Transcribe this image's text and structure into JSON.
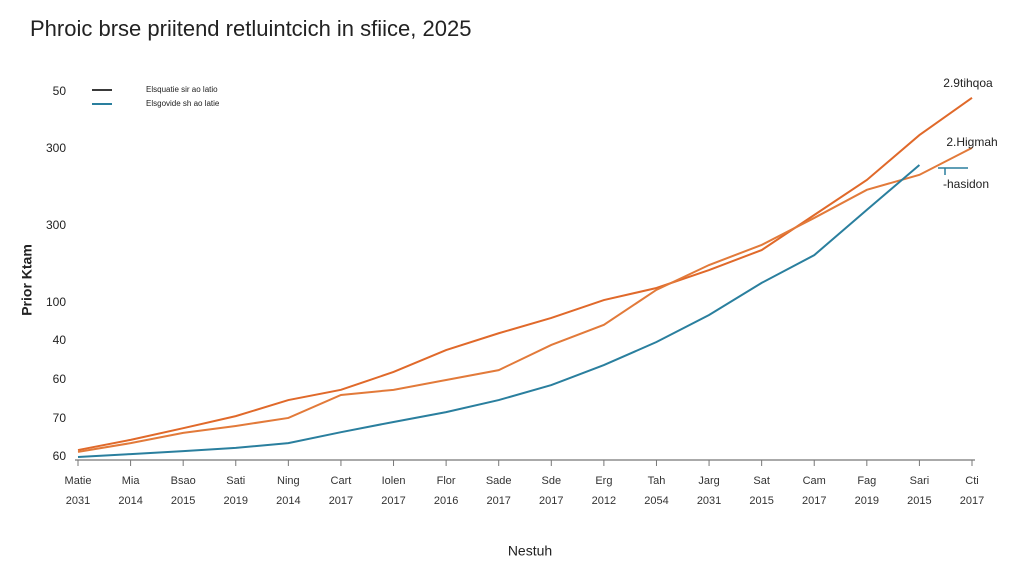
{
  "chart_data": {
    "type": "line",
    "title": "Phroic brse priitend retluintcich in sfiice, 2025",
    "ylabel": "Prior Ktam",
    "xlabel": "Nestuh",
    "y_labels": [
      "60",
      "70",
      "60",
      "40",
      "100",
      "300",
      "300",
      "50"
    ],
    "categories": [
      [
        "Matie",
        "2031"
      ],
      [
        "Mia",
        "2014"
      ],
      [
        "Bsao",
        "2015"
      ],
      [
        "Sati",
        "2019"
      ],
      [
        "Ning",
        "2014"
      ],
      [
        "Cart",
        "2017"
      ],
      [
        "Iolen",
        "2017"
      ],
      [
        "Flor",
        "2016"
      ],
      [
        "Sade",
        "2017"
      ],
      [
        "Sde",
        "2017"
      ],
      [
        "Erg",
        "2012"
      ],
      [
        "Tah",
        "2054"
      ],
      [
        "Jarg",
        "2031"
      ],
      [
        "Sat",
        "2015"
      ],
      [
        "Cam",
        "2017"
      ],
      [
        "Fag",
        "2019"
      ],
      [
        "Sari",
        "2015"
      ],
      [
        "Cti",
        "2017"
      ]
    ],
    "ylim": [
      0,
      100
    ],
    "legend": [
      {
        "name": "Elsquatie sir ao latio",
        "color": "#3a3a3a"
      },
      {
        "name": "Elsgovide sh ao latie",
        "color": "#2a7f9e"
      }
    ],
    "series": [
      {
        "color": "#e0692a",
        "values": [
          1.9,
          4.7,
          7.9,
          11.2,
          15.6,
          18.4,
          23.3,
          29.3,
          33.9,
          38.1,
          43.0,
          46.3,
          51.2,
          56.7,
          66.3,
          75.9,
          88.2,
          98.4
        ]
      },
      {
        "color": "#e27a3a",
        "values": [
          1.4,
          3.8,
          6.6,
          8.5,
          10.7,
          17.0,
          18.4,
          21.1,
          23.8,
          30.7,
          36.2,
          45.8,
          52.6,
          58.1,
          65.5,
          73.2,
          77.3,
          84.7
        ]
      },
      {
        "color": "#2a7f9e",
        "values": [
          0,
          0.8,
          1.6,
          2.5,
          3.8,
          6.8,
          9.6,
          12.3,
          15.6,
          19.7,
          25.2,
          31.5,
          38.9,
          47.7,
          55.3,
          67.7,
          80.0,
          null
        ]
      }
    ],
    "annotations": [
      "2.9tihqoa",
      "2.Higmah",
      "-hasidon"
    ]
  }
}
